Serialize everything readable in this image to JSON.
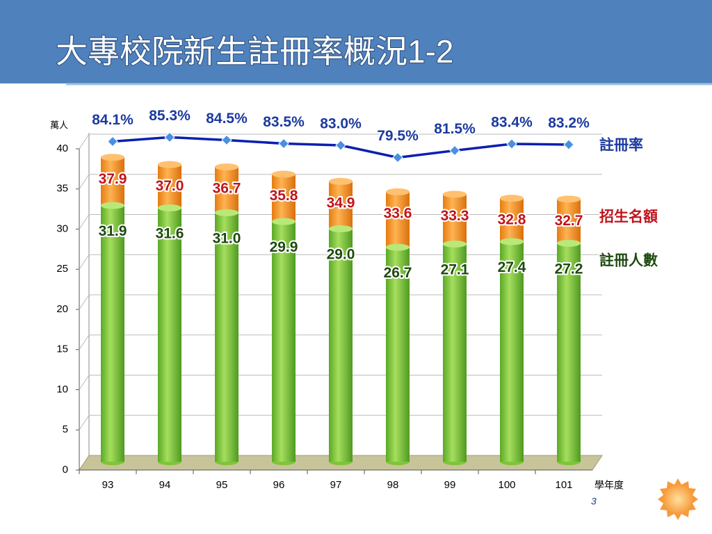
{
  "title": "大專校院新生註冊率概況1-2",
  "page_number": "3",
  "chart_data": {
    "type": "bar",
    "y_label": "萬人",
    "x_label": "學年度",
    "categories": [
      "93",
      "94",
      "95",
      "96",
      "97",
      "98",
      "99",
      "100",
      "101"
    ],
    "ylim": [
      0,
      40
    ],
    "yticks": [
      0,
      5,
      10,
      15,
      20,
      25,
      30,
      35,
      40
    ],
    "grid": true,
    "y2lim": [
      -10,
      82
    ],
    "series": [
      {
        "name": "招生名額",
        "color": "#f7931e",
        "values": [
          37.9,
          37.0,
          36.7,
          35.8,
          34.9,
          33.6,
          33.3,
          32.8,
          32.7
        ],
        "value_labels": [
          "37.9",
          "37.0",
          "36.7",
          "35.8",
          "34.9",
          "33.6",
          "33.3",
          "32.8",
          "32.7"
        ]
      },
      {
        "name": "註冊人數",
        "color": "#7cc63a",
        "values": [
          31.9,
          31.6,
          31.0,
          29.9,
          29.0,
          26.7,
          27.1,
          27.4,
          27.2
        ],
        "value_labels": [
          "31.9",
          "31.6",
          "31.0",
          "29.9",
          "29.0",
          "26.7",
          "27.1",
          "27.4",
          "27.2"
        ]
      },
      {
        "name": "註冊率",
        "color": "#0a1fb0",
        "type": "line",
        "axis": "y2",
        "values": [
          84.1,
          85.3,
          84.5,
          83.5,
          83.0,
          79.5,
          81.5,
          83.4,
          83.2
        ],
        "value_labels": [
          "84.1%",
          "85.3%",
          "84.5%",
          "83.5%",
          "83.0%",
          "79.5%",
          "81.5%",
          "83.4%",
          "83.2%"
        ]
      }
    ]
  }
}
